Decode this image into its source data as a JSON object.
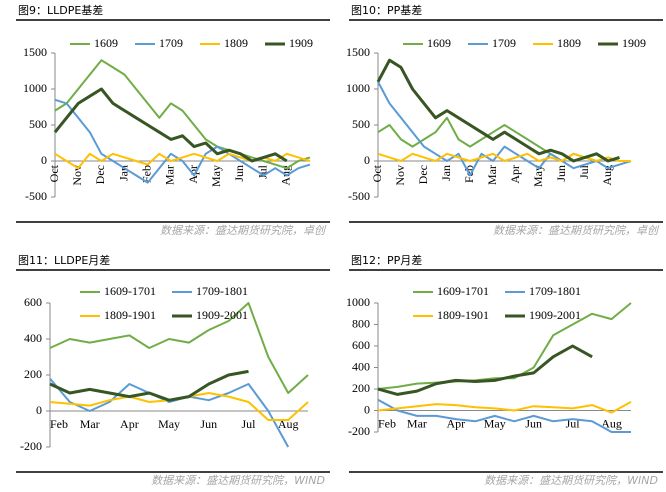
{
  "chart_data": [
    {
      "type": "line",
      "title": "图9：LLDPE基差",
      "source": "数据来源：盛达期货研究院，卓创",
      "categories": [
        "Oct",
        null,
        "Nov",
        null,
        "Dec",
        null,
        "Jan",
        null,
        "Feb",
        null,
        "Mar",
        null,
        "Apr",
        null,
        "May",
        null,
        "Jun",
        null,
        "Jul",
        null,
        "Aug",
        null,
        null
      ],
      "ylim": [
        -500,
        1500
      ],
      "yticks": [
        -500,
        0,
        500,
        1000,
        1500
      ],
      "series": [
        {
          "name": "1609",
          "color": "#70ad47",
          "values": [
            700,
            800,
            1000,
            1200,
            1400,
            1300,
            1200,
            1000,
            800,
            600,
            800,
            700,
            500,
            300,
            200,
            150,
            100,
            50,
            0,
            -50,
            -100,
            0,
            50
          ]
        },
        {
          "name": "1709",
          "color": "#5b9bd5",
          "values": [
            850,
            800,
            600,
            400,
            100,
            0,
            -100,
            -200,
            -300,
            -100,
            100,
            0,
            -200,
            100,
            200,
            100,
            0,
            -100,
            -200,
            -100,
            -200,
            -100,
            -50
          ]
        },
        {
          "name": "1809",
          "color": "#ffc000",
          "values": [
            100,
            0,
            -100,
            100,
            0,
            100,
            50,
            0,
            -50,
            100,
            0,
            50,
            100,
            50,
            0,
            100,
            50,
            0,
            50,
            0,
            100,
            50,
            0
          ]
        },
        {
          "name": "1909",
          "color": "#375623",
          "values": [
            400,
            600,
            800,
            900,
            1000,
            800,
            700,
            600,
            500,
            400,
            300,
            350,
            200,
            250,
            100,
            150,
            100,
            0,
            50,
            100,
            0,
            null,
            null
          ]
        }
      ]
    },
    {
      "type": "line",
      "title": "图10：PP基差",
      "source": "数据来源：盛达期货研究院，卓创",
      "categories": [
        "Oct",
        null,
        "Nov",
        null,
        "Dec",
        null,
        "Jan",
        null,
        "Feb",
        null,
        "Mar",
        null,
        "Apr",
        null,
        "May",
        null,
        "Jun",
        null,
        "Jul",
        null,
        "Aug",
        null,
        null
      ],
      "ylim": [
        -500,
        1500
      ],
      "yticks": [
        -500,
        0,
        500,
        1000,
        1500
      ],
      "series": [
        {
          "name": "1609",
          "color": "#70ad47",
          "values": [
            400,
            500,
            300,
            200,
            300,
            400,
            600,
            300,
            200,
            300,
            400,
            500,
            400,
            300,
            200,
            100,
            0,
            100,
            50,
            0,
            null,
            null,
            null
          ]
        },
        {
          "name": "1709",
          "color": "#5b9bd5",
          "values": [
            1100,
            800,
            600,
            400,
            200,
            100,
            0,
            100,
            -200,
            100,
            0,
            200,
            100,
            0,
            -100,
            100,
            0,
            -100,
            -50,
            0,
            -100,
            -50,
            0
          ]
        },
        {
          "name": "1809",
          "color": "#ffc000",
          "values": [
            100,
            50,
            0,
            100,
            50,
            0,
            100,
            50,
            0,
            50,
            100,
            0,
            50,
            100,
            0,
            50,
            0,
            100,
            50,
            0,
            50,
            0,
            0
          ]
        },
        {
          "name": "1909",
          "color": "#375623",
          "values": [
            1100,
            1400,
            1300,
            1000,
            800,
            600,
            700,
            600,
            500,
            400,
            300,
            400,
            300,
            200,
            100,
            150,
            100,
            0,
            50,
            100,
            0,
            50,
            null
          ]
        }
      ]
    },
    {
      "type": "line",
      "title": "图11：LLDPE月差",
      "source": "数据来源：盛达期货研究院，WIND",
      "categories": [
        "Feb",
        null,
        "Mar",
        null,
        "Apr",
        null,
        "May",
        null,
        "Jun",
        null,
        "Jul",
        null,
        "Aug",
        null
      ],
      "ylim": [
        -200,
        600
      ],
      "yticks": [
        -200,
        0,
        200,
        400,
        600
      ],
      "series": [
        {
          "name": "1609-1701",
          "color": "#70ad47",
          "values": [
            350,
            400,
            380,
            400,
            420,
            350,
            400,
            380,
            450,
            500,
            600,
            300,
            100,
            200
          ]
        },
        {
          "name": "1709-1801",
          "color": "#5b9bd5",
          "values": [
            180,
            50,
            0,
            50,
            150,
            100,
            50,
            80,
            60,
            100,
            150,
            0,
            -200,
            null
          ]
        },
        {
          "name": "1809-1901",
          "color": "#ffc000",
          "values": [
            50,
            40,
            30,
            60,
            80,
            50,
            60,
            80,
            100,
            80,
            50,
            -50,
            -50,
            50
          ]
        },
        {
          "name": "1909-2001",
          "color": "#375623",
          "values": [
            150,
            100,
            120,
            100,
            80,
            100,
            60,
            80,
            150,
            200,
            220,
            null,
            null,
            null
          ]
        }
      ]
    },
    {
      "type": "line",
      "title": "图12：PP月差",
      "source": "数据来源：盛达期货研究院，WIND",
      "categories": [
        "Feb",
        null,
        "Mar",
        null,
        "Apr",
        null,
        "May",
        null,
        "Jun",
        null,
        "Jul",
        null,
        "Aug",
        null
      ],
      "ylim": [
        -200,
        1000
      ],
      "yticks": [
        -200,
        0,
        200,
        400,
        600,
        800,
        1000
      ],
      "series": [
        {
          "name": "1609-1701",
          "color": "#70ad47",
          "values": [
            200,
            220,
            250,
            260,
            270,
            280,
            300,
            300,
            400,
            700,
            800,
            900,
            850,
            1000
          ]
        },
        {
          "name": "1709-1801",
          "color": "#5b9bd5",
          "values": [
            100,
            0,
            -50,
            -50,
            -80,
            -100,
            -50,
            -100,
            -50,
            -100,
            -80,
            -100,
            -200,
            -200
          ]
        },
        {
          "name": "1809-1901",
          "color": "#ffc000",
          "values": [
            0,
            20,
            40,
            60,
            50,
            30,
            20,
            0,
            40,
            30,
            20,
            50,
            -20,
            80
          ]
        },
        {
          "name": "1909-2001",
          "color": "#375623",
          "values": [
            200,
            150,
            180,
            250,
            280,
            270,
            280,
            320,
            350,
            500,
            600,
            500,
            null,
            null
          ]
        }
      ]
    }
  ]
}
